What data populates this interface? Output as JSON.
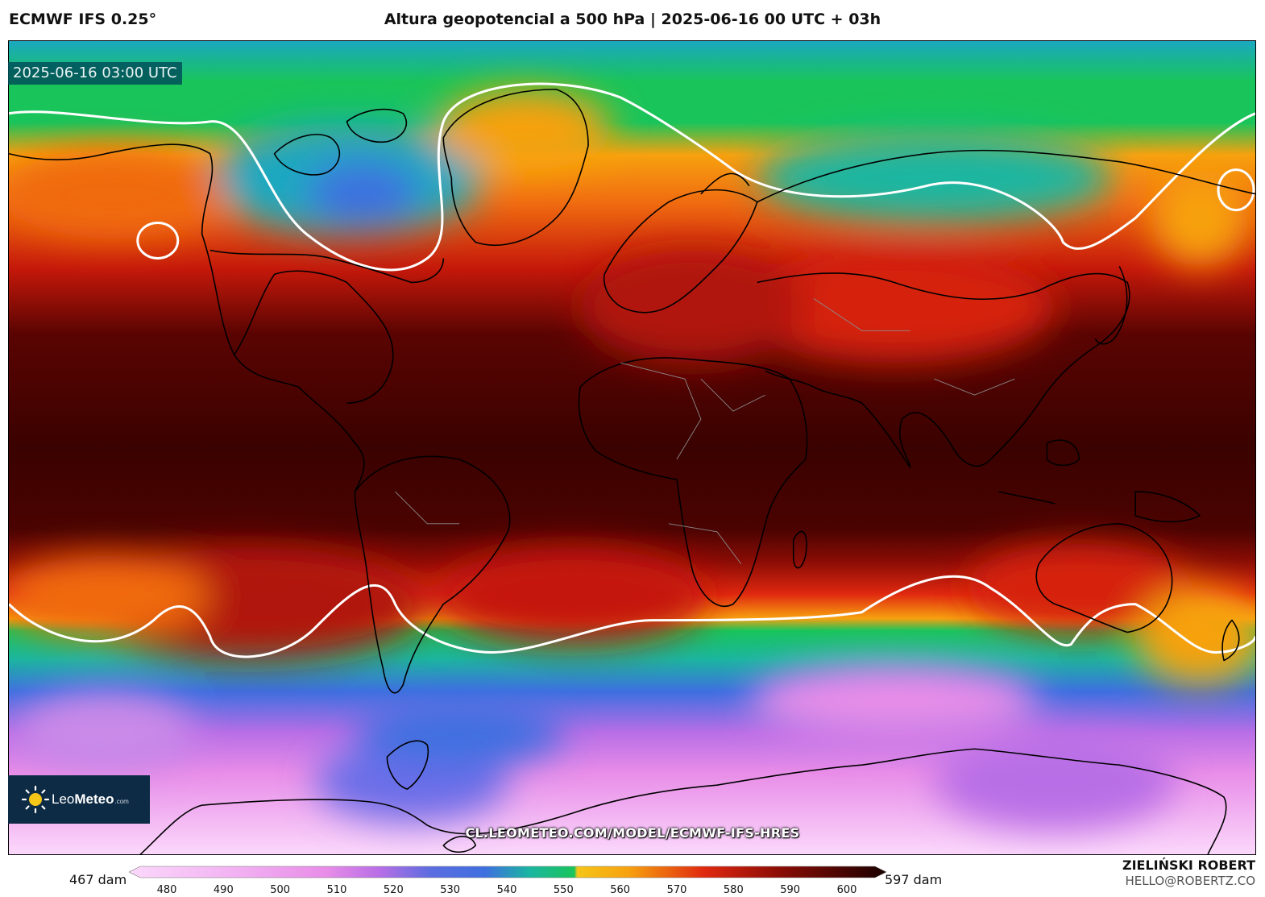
{
  "header": {
    "model": "ECMWF IFS 0.25°",
    "title": "Altura geopotencial a 500 hPa | 2025-06-16 00 UTC + 03h"
  },
  "map": {
    "valid_time": "2025-06-16 03:00 UTC",
    "watermark_url": "CL.LEOMETEO.COM/MODEL/ECMWF-IFS-HRES",
    "projection": "equirectangular-world",
    "field": "geopotential-height-500hpa"
  },
  "logo": {
    "name_light": "Leo",
    "name_bold": "Meteo",
    "suffix": ".com"
  },
  "colorbar": {
    "min_label": "467 dam",
    "max_label": "597 dam",
    "ticks": [
      "480",
      "490",
      "500",
      "510",
      "520",
      "530",
      "540",
      "550",
      "560",
      "570",
      "580",
      "590",
      "600"
    ],
    "tick_values": [
      480,
      490,
      500,
      510,
      520,
      530,
      540,
      550,
      560,
      570,
      580,
      590,
      600
    ],
    "range": [
      467,
      597
    ],
    "colors": {
      "low": "#fbd8fb",
      "pink": "#e88de8",
      "purple": "#b86ee6",
      "blue": "#3e6fe0",
      "teal": "#1ab6a0",
      "green": "#19c45a",
      "orange": "#f7a10f",
      "red": "#e0280f",
      "darkred": "#7a0a05",
      "darkest": "#2c0200",
      "contour_552": "#ffffff"
    }
  },
  "credit": {
    "name": "ZIELIŃSKI ROBERT",
    "email": "HELLO@ROBERTZ.CO"
  }
}
